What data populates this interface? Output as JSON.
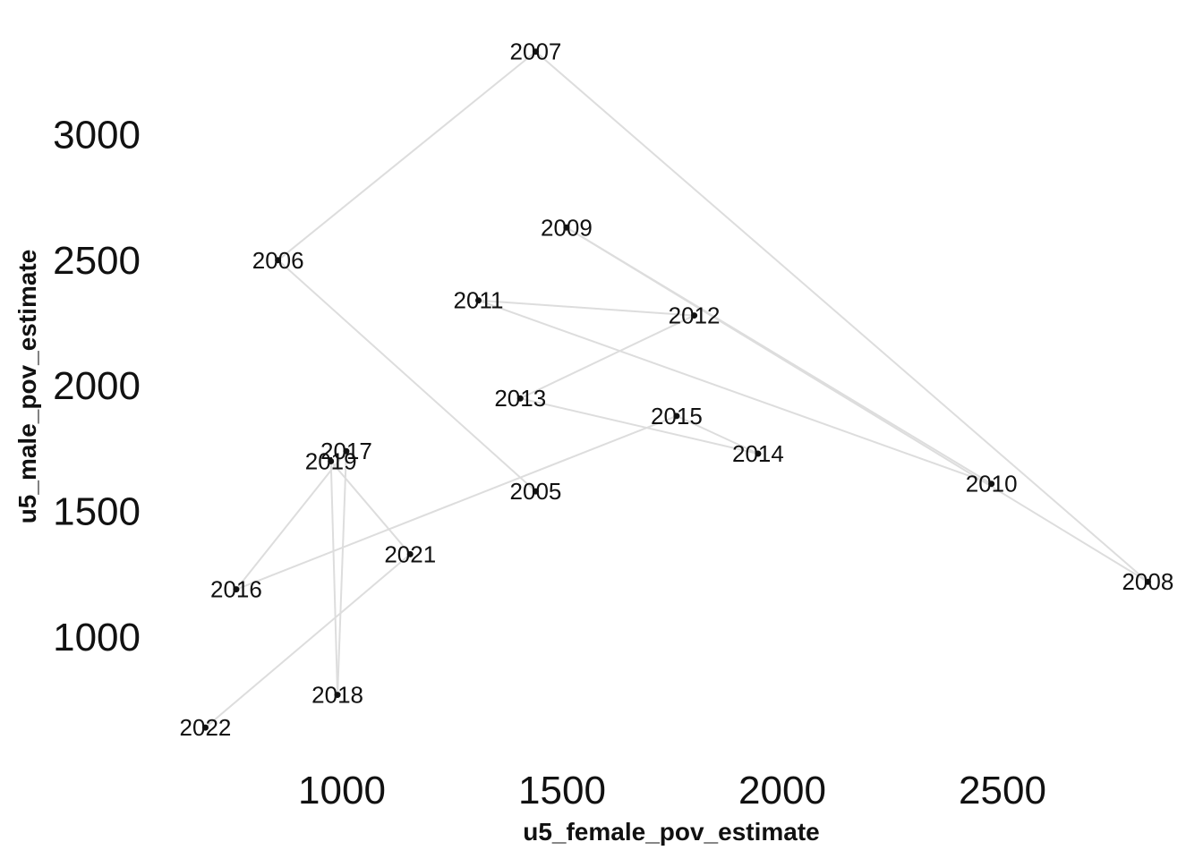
{
  "chart_data": {
    "type": "scatter",
    "title": "",
    "xlabel": "u5_female_pov_estimate",
    "ylabel": "u5_male_pov_estimate",
    "xlim": [
      620,
      2830
    ],
    "ylim": [
      650,
      3340
    ],
    "xticks": [
      1000,
      1500,
      2000,
      2500
    ],
    "yticks": [
      1000,
      1500,
      2000,
      2500,
      3000
    ],
    "grid": false,
    "connected_path": true,
    "points": [
      {
        "year": "2005",
        "x": 1440,
        "y": 1580
      },
      {
        "year": "2006",
        "x": 855,
        "y": 2500
      },
      {
        "year": "2007",
        "x": 1440,
        "y": 3330
      },
      {
        "year": "2008",
        "x": 2830,
        "y": 1220
      },
      {
        "year": "2009",
        "x": 1510,
        "y": 2630
      },
      {
        "year": "2010",
        "x": 2475,
        "y": 1610
      },
      {
        "year": "2011",
        "x": 1310,
        "y": 2340
      },
      {
        "year": "2012",
        "x": 1800,
        "y": 2280
      },
      {
        "year": "2013",
        "x": 1405,
        "y": 1950
      },
      {
        "year": "2014",
        "x": 1945,
        "y": 1730
      },
      {
        "year": "2015",
        "x": 1760,
        "y": 1880
      },
      {
        "year": "2016",
        "x": 760,
        "y": 1190
      },
      {
        "year": "2017",
        "x": 1010,
        "y": 1740
      },
      {
        "year": "2018",
        "x": 990,
        "y": 770
      },
      {
        "year": "2019",
        "x": 975,
        "y": 1700
      },
      {
        "year": "2021",
        "x": 1155,
        "y": 1330
      },
      {
        "year": "2022",
        "x": 690,
        "y": 640
      }
    ]
  }
}
